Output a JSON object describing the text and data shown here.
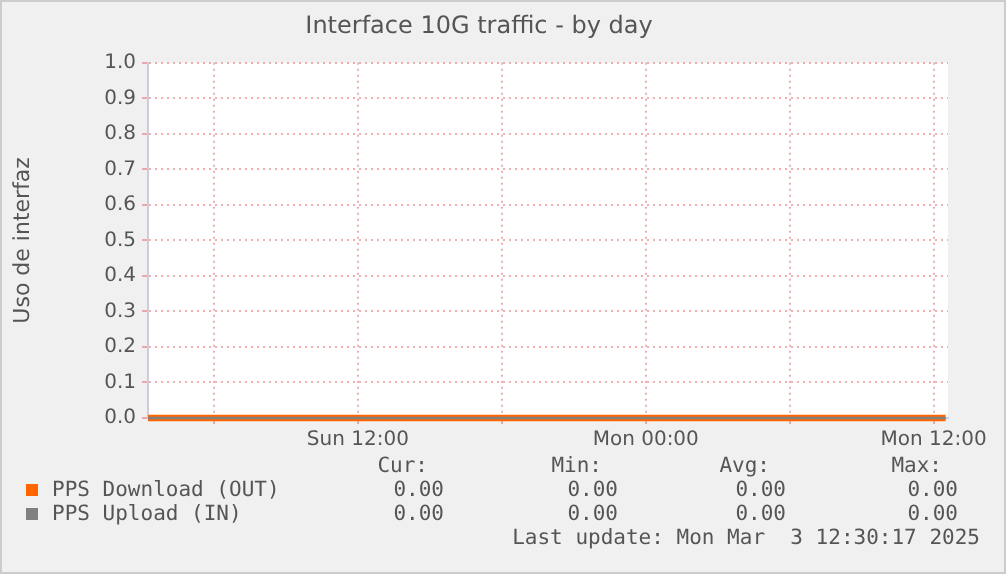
{
  "chart_data": {
    "type": "line",
    "title": "Interface 10G traffic - by day",
    "ylabel": "Uso de interfaz",
    "x": [
      "2025-03-02T03:15",
      "2025-03-03T12:30"
    ],
    "series": [
      {
        "name": "PPS Download (OUT)",
        "color": "#ff6600",
        "values": [
          0,
          0
        ]
      },
      {
        "name": "PPS Upload (IN)",
        "color": "#808080",
        "values": [
          0,
          0
        ]
      }
    ],
    "xlim": [
      "2025-03-02T03:15",
      "2025-03-03T12:36"
    ],
    "xticks": [
      {
        "value": "2025-03-02T06:00",
        "label": null
      },
      {
        "value": "2025-03-02T12:00",
        "label": "Sun 12:00"
      },
      {
        "value": "2025-03-02T18:00",
        "label": null
      },
      {
        "value": "2025-03-03T00:00",
        "label": "Mon 00:00"
      },
      {
        "value": "2025-03-03T06:00",
        "label": null
      },
      {
        "value": "2025-03-03T12:00",
        "label": "Mon 12:00"
      }
    ],
    "ylim": [
      0,
      1
    ],
    "yticks": [
      {
        "value": 0,
        "label": "0.0"
      },
      0.1,
      0.2,
      0.3,
      0.4,
      0.5,
      0.6,
      0.7,
      0.8,
      0.9,
      {
        "value": 1,
        "label": "1.0"
      }
    ],
    "grid": true,
    "legend": "bottom",
    "marker": "none",
    "line_style": "solid",
    "annotations": [
      "Cur:",
      "Min:",
      "Avg:",
      "Max:",
      "0.00",
      "0.00",
      "0.00",
      "0.00",
      "0.00",
      "0.00",
      "0.00",
      "0.00",
      "Last update: Mon Mar  3 12:30:17 2025"
    ]
  }
}
